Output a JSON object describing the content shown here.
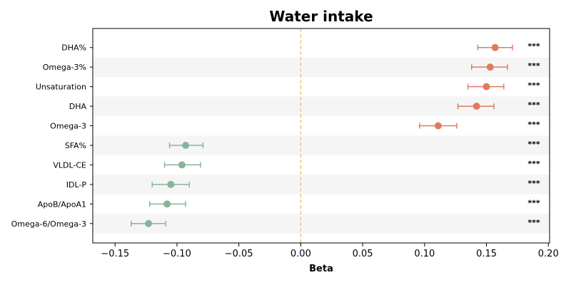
{
  "chart_data": {
    "type": "forest",
    "title": "Water intake",
    "xlabel": "Beta",
    "xlim": [
      -0.168,
      0.201
    ],
    "xticks": [
      -0.15,
      -0.1,
      -0.05,
      0.0,
      0.05,
      0.1,
      0.15,
      0.2
    ],
    "xtick_labels": [
      "−0.15",
      "−0.10",
      "−0.05",
      "0.00",
      "0.05",
      "0.10",
      "0.15",
      "0.20"
    ],
    "reference_line": 0.0,
    "colors": {
      "positive": "#e07b5f",
      "negative": "#86b49b",
      "reference": "#f4c27a",
      "stripe": "#f5f5f5"
    },
    "rows": [
      {
        "label": "DHA%",
        "beta": 0.157,
        "lo": 0.143,
        "hi": 0.171,
        "sig": "***"
      },
      {
        "label": "Omega-3%",
        "beta": 0.153,
        "lo": 0.138,
        "hi": 0.167,
        "sig": "***"
      },
      {
        "label": "Unsaturation",
        "beta": 0.15,
        "lo": 0.135,
        "hi": 0.164,
        "sig": "***"
      },
      {
        "label": "DHA",
        "beta": 0.142,
        "lo": 0.127,
        "hi": 0.156,
        "sig": "***"
      },
      {
        "label": "Omega-3",
        "beta": 0.111,
        "lo": 0.096,
        "hi": 0.126,
        "sig": "***"
      },
      {
        "label": "SFA%",
        "beta": -0.093,
        "lo": -0.106,
        "hi": -0.079,
        "sig": "***"
      },
      {
        "label": "VLDL-CE",
        "beta": -0.096,
        "lo": -0.11,
        "hi": -0.081,
        "sig": "***"
      },
      {
        "label": "IDL-P",
        "beta": -0.105,
        "lo": -0.12,
        "hi": -0.09,
        "sig": "***"
      },
      {
        "label": "ApoB/ApoA1",
        "beta": -0.108,
        "lo": -0.122,
        "hi": -0.093,
        "sig": "***"
      },
      {
        "label": "Omega-6/Omega-3",
        "beta": -0.123,
        "lo": -0.137,
        "hi": -0.109,
        "sig": "***"
      }
    ]
  }
}
